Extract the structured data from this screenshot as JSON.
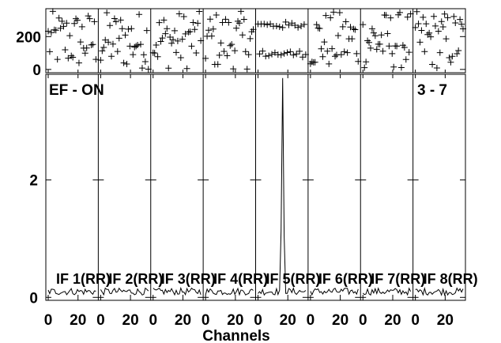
{
  "chart_data": {
    "type": "line",
    "title": "EF - ON",
    "title_right": "3 - 7",
    "xlabel": "Channels",
    "grid": false,
    "panel_count": 8,
    "panel_labels": [
      "IF 1(RR)",
      "IF 2(RR)",
      "IF 3(RR)",
      "IF 4(RR)",
      "IF 5(RR)",
      "IF 6(RR)",
      "IF 7(RR)",
      "IF 8(RR)"
    ],
    "x_range": [
      1,
      32
    ],
    "x_ticks": [
      0,
      20
    ],
    "x_tick_labels": [
      "0",
      "20"
    ],
    "amplitude": {
      "ylim": [
        -0.05,
        3.8
      ],
      "y_ticks": [
        0,
        2
      ],
      "y_tick_labels": [
        "0",
        "2"
      ],
      "baseline": 0.1,
      "noise": 0.06,
      "peak": {
        "panel": 5,
        "channel": 17,
        "value": 3.7,
        "width_channels": 1.3
      }
    },
    "phase": {
      "ylim": [
        -20,
        370
      ],
      "y_ticks": [
        0,
        200
      ],
      "y_tick_labels": [
        "0",
        "200"
      ],
      "points_per_panel": 32,
      "structured_panel": {
        "panel": 5,
        "upper_level": 270,
        "lower_level": 95
      }
    }
  }
}
